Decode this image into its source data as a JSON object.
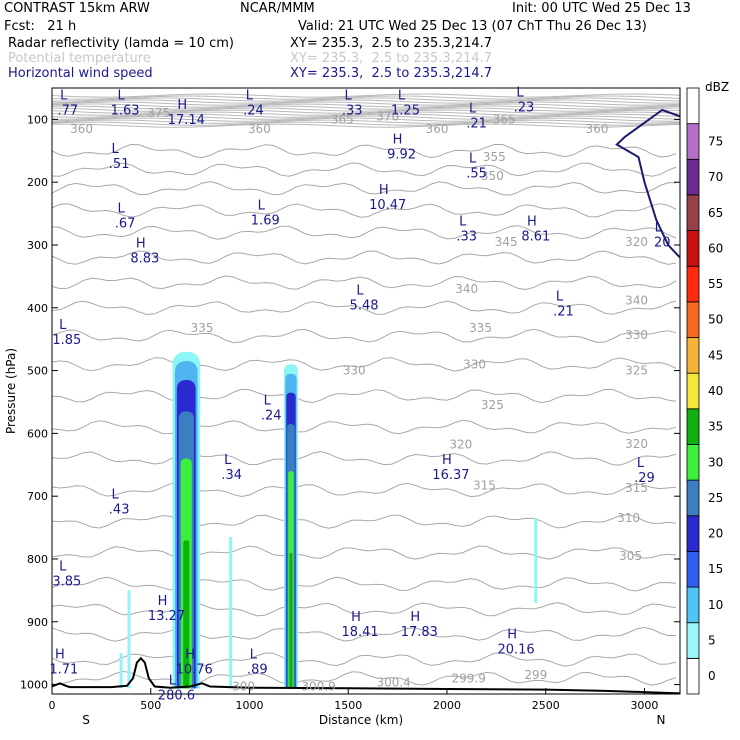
{
  "header": {
    "title": "CONTRAST 15km ARW",
    "center": "NCAR/MMM",
    "init": "Init: 00 UTC Wed 25 Dec 13",
    "fcst": "Fcst:   21 h",
    "valid": "Valid: 21 UTC Wed 25 Dec 13 (07 ChT Thu 26 Dec 13)",
    "fields": [
      {
        "label": "Radar reflectivity (lamda = 10 cm)",
        "xy": "XY= 235.3,  2.5 to 235.3,214.7",
        "color": "#000000"
      },
      {
        "label": "Potential temperature",
        "xy": "XY= 235.3,  2.5 to 235.3,214.7",
        "color": "#c8c8c8"
      },
      {
        "label": "Horizontal wind speed",
        "xy": "XY= 235.3,  2.5 to 235.3,214.7",
        "color": "#1a1a8c"
      }
    ]
  },
  "chart_data": {
    "type": "cross-section",
    "xlabel": "Distance (km)",
    "ylabel": "Pressure (hPa)",
    "xlim": [
      0,
      3180
    ],
    "ylim": [
      1015,
      50
    ],
    "x_ticks": [
      0,
      500,
      1000,
      1500,
      2000,
      2500,
      3000
    ],
    "y_ticks": [
      100,
      200,
      300,
      400,
      500,
      600,
      700,
      800,
      900,
      1000
    ],
    "left_end": "S",
    "right_end": "N",
    "colorbar": {
      "unit": "dBZ",
      "levels": [
        "0",
        "5",
        "10",
        "15",
        "20",
        "25",
        "30",
        "35",
        "40",
        "45",
        "50",
        "55",
        "60",
        "65",
        "70",
        "75"
      ],
      "colors": [
        "#ffffff",
        "#9bf7f7",
        "#4fc4f7",
        "#2f5ff0",
        "#2a2ad0",
        "#3a7fc0",
        "#3ef03e",
        "#10b010",
        "#f7e63a",
        "#f7b23a",
        "#f76a20",
        "#ff2a10",
        "#c81010",
        "#964048",
        "#6c2a90",
        "#b470c8",
        "#ffffff"
      ]
    },
    "reflectivity_cores": [
      {
        "x_center": 680,
        "top_hpa": 470,
        "width_km": 140
      },
      {
        "x_center": 1210,
        "top_hpa": 490,
        "width_km": 70
      }
    ],
    "isentrope_labels": [
      {
        "text": "360",
        "x": 150,
        "p": 115
      },
      {
        "text": "375",
        "x": 540,
        "p": 90
      },
      {
        "text": "360",
        "x": 1050,
        "p": 115
      },
      {
        "text": "365",
        "x": 1470,
        "p": 100
      },
      {
        "text": "370",
        "x": 1700,
        "p": 95
      },
      {
        "text": "360",
        "x": 1950,
        "p": 115
      },
      {
        "text": "365",
        "x": 2290,
        "p": 100
      },
      {
        "text": "360",
        "x": 2760,
        "p": 115
      },
      {
        "text": "355",
        "x": 2240,
        "p": 160
      },
      {
        "text": "350",
        "x": 2230,
        "p": 190
      },
      {
        "text": "345",
        "x": 2300,
        "p": 295
      },
      {
        "text": "340",
        "x": 2100,
        "p": 370
      },
      {
        "text": "335",
        "x": 760,
        "p": 432
      },
      {
        "text": "335",
        "x": 2170,
        "p": 432
      },
      {
        "text": "330",
        "x": 1530,
        "p": 500
      },
      {
        "text": "330",
        "x": 2140,
        "p": 490
      },
      {
        "text": "325",
        "x": 2230,
        "p": 555
      },
      {
        "text": "320",
        "x": 2070,
        "p": 618
      },
      {
        "text": "315",
        "x": 2190,
        "p": 683
      },
      {
        "text": "310",
        "x": 2920,
        "p": 735
      },
      {
        "text": "305",
        "x": 2930,
        "p": 795
      },
      {
        "text": "300",
        "x": 970,
        "p": 1003
      },
      {
        "text": "300.9",
        "x": 1350,
        "p": 1003
      },
      {
        "text": "300.4",
        "x": 1730,
        "p": 997
      },
      {
        "text": "299.9",
        "x": 2110,
        "p": 990
      },
      {
        "text": "299",
        "x": 2450,
        "p": 985
      },
      {
        "text": "320",
        "x": 2960,
        "p": 295
      },
      {
        "text": "340",
        "x": 2960,
        "p": 388
      },
      {
        "text": "330",
        "x": 2960,
        "p": 443
      },
      {
        "text": "325",
        "x": 2960,
        "p": 500
      },
      {
        "text": "320",
        "x": 2960,
        "p": 617
      },
      {
        "text": "315",
        "x": 2960,
        "p": 687
      }
    ],
    "extrema": [
      {
        "type": "L",
        "value": ".77",
        "x": 80,
        "p": 75
      },
      {
        "type": "L",
        "value": "1.63",
        "x": 370,
        "p": 75
      },
      {
        "type": "H",
        "value": "17.14",
        "x": 680,
        "p": 90
      },
      {
        "type": "L",
        "value": ".24",
        "x": 1020,
        "p": 75
      },
      {
        "type": "L",
        "value": ".33",
        "x": 1520,
        "p": 75
      },
      {
        "type": "L",
        "value": "1.25",
        "x": 1790,
        "p": 75
      },
      {
        "type": "L",
        "value": ".21",
        "x": 2150,
        "p": 95
      },
      {
        "type": "L",
        "value": ".23",
        "x": 2390,
        "p": 70
      },
      {
        "type": "L",
        "value": ".51",
        "x": 340,
        "p": 160
      },
      {
        "type": "H",
        "value": "9.92",
        "x": 1770,
        "p": 145
      },
      {
        "type": "L",
        "value": ".55",
        "x": 2150,
        "p": 175
      },
      {
        "type": "H",
        "value": "10.47",
        "x": 1700,
        "p": 225
      },
      {
        "type": "L",
        "value": ".67",
        "x": 370,
        "p": 255
      },
      {
        "type": "L",
        "value": "1.69",
        "x": 1080,
        "p": 250
      },
      {
        "type": "L",
        "value": ".33",
        "x": 2100,
        "p": 275
      },
      {
        "type": "H",
        "value": "8.61",
        "x": 2450,
        "p": 275
      },
      {
        "type": "H",
        "value": "8.83",
        "x": 470,
        "p": 310
      },
      {
        "type": "L",
        "value": "5.48",
        "x": 1580,
        "p": 385
      },
      {
        "type": "L",
        "value": ".21",
        "x": 2590,
        "p": 395
      },
      {
        "type": "L",
        "value": "1.85",
        "x": 75,
        "p": 440
      },
      {
        "type": "L",
        "value": ".24",
        "x": 1110,
        "p": 560
      },
      {
        "type": "L",
        "value": ".34",
        "x": 910,
        "p": 655
      },
      {
        "type": "H",
        "value": "16.37",
        "x": 2020,
        "p": 655
      },
      {
        "type": "L",
        "value": ".29",
        "x": 3000,
        "p": 660
      },
      {
        "type": "L",
        "value": ".43",
        "x": 340,
        "p": 710
      },
      {
        "type": "L",
        "value": "3.85",
        "x": 75,
        "p": 825
      },
      {
        "type": "H",
        "value": "13.27",
        "x": 580,
        "p": 880
      },
      {
        "type": "H",
        "value": "18.41",
        "x": 1560,
        "p": 905
      },
      {
        "type": "H",
        "value": "17.83",
        "x": 1860,
        "p": 905
      },
      {
        "type": "H",
        "value": "20.16",
        "x": 2350,
        "p": 933
      },
      {
        "type": "H",
        "value": "1.71",
        "x": 60,
        "p": 965
      },
      {
        "type": "H",
        "value": "10.76",
        "x": 720,
        "p": 965
      },
      {
        "type": "L",
        "value": ".89",
        "x": 1040,
        "p": 965
      },
      {
        "type": "L",
        "value": "20",
        "x": 3090,
        "p": 285
      },
      {
        "type": "L",
        "value": "280.6",
        "x": 630,
        "p": 1006
      }
    ],
    "terrain": [
      [
        0,
        1003
      ],
      [
        40,
        998
      ],
      [
        70,
        1002
      ],
      [
        90,
        1004
      ],
      [
        300,
        1004
      ],
      [
        380,
        1002
      ],
      [
        410,
        990
      ],
      [
        430,
        965
      ],
      [
        450,
        958
      ],
      [
        470,
        965
      ],
      [
        490,
        990
      ],
      [
        520,
        1003
      ],
      [
        600,
        1005
      ],
      [
        700,
        1003
      ],
      [
        760,
        998
      ],
      [
        800,
        1003
      ],
      [
        1000,
        1005
      ],
      [
        1500,
        1006
      ],
      [
        2000,
        1007
      ],
      [
        2500,
        1008
      ],
      [
        2800,
        1010
      ],
      [
        3000,
        1012
      ],
      [
        3180,
        1014
      ]
    ],
    "jet_contour": [
      [
        3180,
        95
      ],
      [
        3090,
        85
      ],
      [
        2900,
        128
      ],
      [
        2860,
        140
      ],
      [
        2970,
        160
      ],
      [
        3000,
        200
      ],
      [
        3060,
        260
      ],
      [
        3120,
        300
      ],
      [
        3180,
        320
      ]
    ]
  }
}
